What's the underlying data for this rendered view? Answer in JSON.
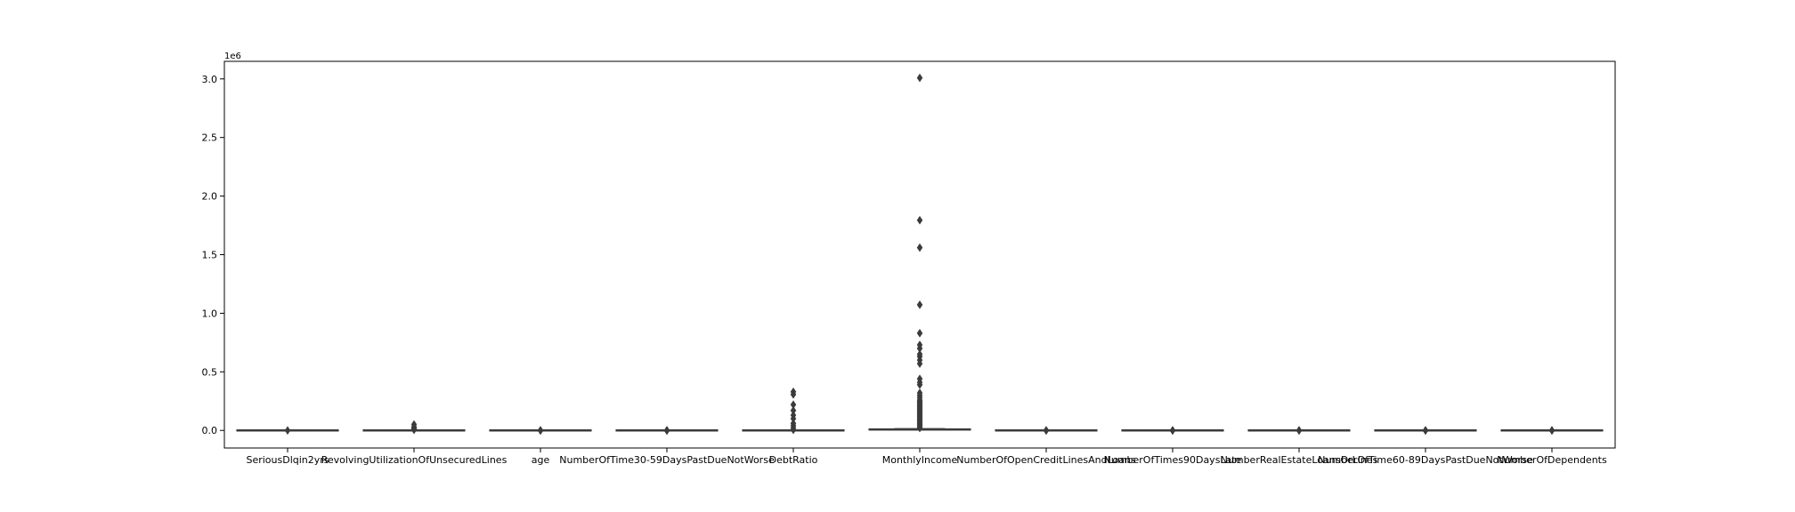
{
  "chart_data": {
    "type": "box",
    "title": "",
    "xlabel": "",
    "ylabel": "",
    "y_multiplier_label": "1e6",
    "ylim": [
      -150000,
      3150000
    ],
    "yticks": [
      0,
      500000,
      1000000,
      1500000,
      2000000,
      2500000,
      3000000
    ],
    "ytick_labels": [
      "0.0",
      "0.5",
      "1.0",
      "1.5",
      "2.0",
      "2.5",
      "3.0"
    ],
    "grid": false,
    "box_color": "#3b3b3b",
    "categories": [
      "SeriousDlqin2yrs",
      "RevolvingUtilizationOfUnsecuredLines",
      "age",
      "NumberOfTime30-59DaysPastDueNotWorse",
      "DebtRatio",
      "MonthlyIncome",
      "NumberOfOpenCreditLinesAndLoans",
      "NumberOfTimes90DaysLate",
      "NumberRealEstateLoansOrLines",
      "NumberOfTime60-89DaysPastDueNotWorse",
      "NumberOfDependents"
    ],
    "boxes": [
      {
        "q1": 0,
        "median": 0,
        "q3": 0,
        "whisker_low": 0,
        "whisker_high": 0,
        "outliers": [
          1
        ]
      },
      {
        "q1": 0.03,
        "median": 0.15,
        "q3": 0.56,
        "whisker_low": 0,
        "whisker_high": 1.3,
        "outliers": [
          5000,
          12000,
          20000,
          29110,
          50708
        ]
      },
      {
        "q1": 41,
        "median": 52,
        "q3": 63,
        "whisker_low": 21,
        "whisker_high": 96,
        "outliers": [
          0,
          103,
          107,
          109
        ]
      },
      {
        "q1": 0,
        "median": 0,
        "q3": 0,
        "whisker_low": 0,
        "whisker_high": 0,
        "outliers": [
          1,
          2,
          5,
          13,
          96,
          98
        ]
      },
      {
        "q1": 0.18,
        "median": 0.37,
        "q3": 0.87,
        "whisker_low": 0,
        "whisker_high": 1.9,
        "outliers": [
          5000,
          20000,
          40000,
          60000,
          100000,
          130000,
          170000,
          220000,
          307001,
          329664
        ]
      },
      {
        "q1": 3400,
        "median": 5400,
        "q3": 8250,
        "whisker_low": 0,
        "whisker_high": 15500,
        "outliers": [
          20000,
          30000,
          40000,
          50000,
          60000,
          70000,
          80000,
          90000,
          100000,
          110000,
          120000,
          130000,
          140000,
          150000,
          160000,
          170000,
          180000,
          190000,
          200000,
          210000,
          220000,
          230000,
          240000,
          250000,
          260000,
          280000,
          300000,
          320000,
          390000,
          410000,
          440000,
          570000,
          600000,
          630000,
          650000,
          700000,
          730000,
          830000,
          1072500,
          1560100,
          1794060,
          3008750
        ]
      },
      {
        "q1": 5,
        "median": 8,
        "q3": 11,
        "whisker_low": 0,
        "whisker_high": 20,
        "outliers": [
          21,
          30,
          58
        ]
      },
      {
        "q1": 0,
        "median": 0,
        "q3": 0,
        "whisker_low": 0,
        "whisker_high": 0,
        "outliers": [
          1,
          3,
          17,
          98
        ]
      },
      {
        "q1": 0,
        "median": 1,
        "q3": 2,
        "whisker_low": 0,
        "whisker_high": 5,
        "outliers": [
          6,
          20,
          54
        ]
      },
      {
        "q1": 0,
        "median": 0,
        "q3": 0,
        "whisker_low": 0,
        "whisker_high": 0,
        "outliers": [
          1,
          3,
          11,
          98
        ]
      },
      {
        "q1": 0,
        "median": 0,
        "q3": 1,
        "whisker_low": 0,
        "whisker_high": 2.5,
        "outliers": [
          3,
          10,
          20
        ]
      }
    ]
  }
}
